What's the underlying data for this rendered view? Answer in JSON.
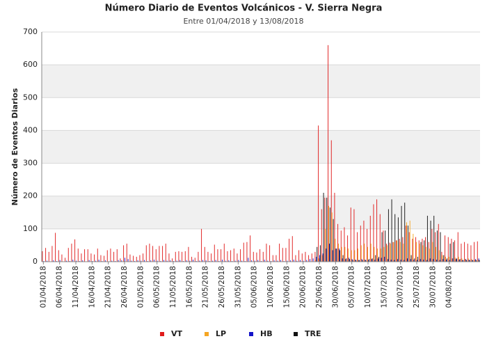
{
  "chart_data": {
    "type": "bar",
    "title": "Número Diario de Eventos Volcánicos -  V. Sierra Negra",
    "subtitle": "Entre 01/04/2018 y 13/08/2018",
    "y_label": "Número de Eventos Diarios",
    "grid": true,
    "legend": "bottom",
    "ylim": [
      0,
      700
    ],
    "yticks": [
      0,
      100,
      200,
      300,
      400,
      500,
      600,
      700
    ],
    "categories": [
      "01/04/2018",
      null,
      null,
      null,
      null,
      "06/04/2018",
      null,
      null,
      null,
      null,
      "11/04/2018",
      null,
      null,
      null,
      null,
      "16/04/2018",
      null,
      null,
      null,
      null,
      "21/04/2018",
      null,
      null,
      null,
      null,
      "26/04/2018",
      null,
      null,
      null,
      null,
      "01/05/2018",
      null,
      null,
      null,
      null,
      "06/05/2018",
      null,
      null,
      null,
      null,
      "11/05/2018",
      null,
      null,
      null,
      null,
      "16/05/2018",
      null,
      null,
      null,
      null,
      "21/05/2018",
      null,
      null,
      null,
      null,
      "26/05/2018",
      null,
      null,
      null,
      null,
      "31/05/2018",
      null,
      null,
      null,
      null,
      "05/06/2018",
      null,
      null,
      null,
      null,
      "10/06/2018",
      null,
      null,
      null,
      null,
      "15/06/2018",
      null,
      null,
      null,
      null,
      "20/06/2018",
      null,
      null,
      null,
      null,
      "25/06/2018",
      null,
      null,
      null,
      null,
      "30/06/2018",
      null,
      null,
      null,
      null,
      "05/07/2018",
      null,
      null,
      null,
      null,
      "10/07/2018",
      null,
      null,
      null,
      null,
      "15/07/2018",
      null,
      null,
      null,
      null,
      "20/07/2018",
      null,
      null,
      null,
      null,
      "25/07/2018",
      null,
      null,
      null,
      null,
      "30/07/2018",
      null,
      null,
      null,
      null,
      "04/08/2018",
      null,
      null,
      null,
      null,
      null,
      null,
      null,
      null,
      null
    ],
    "series": [
      {
        "name": "VT",
        "color": "#e01b1b",
        "values": [
          32,
          42,
          30,
          48,
          88,
          35,
          22,
          12,
          42,
          55,
          68,
          40,
          25,
          38,
          38,
          25,
          22,
          40,
          20,
          18,
          35,
          40,
          30,
          38,
          10,
          50,
          55,
          22,
          18,
          15,
          20,
          25,
          50,
          55,
          48,
          38,
          48,
          48,
          55,
          25,
          10,
          30,
          32,
          30,
          32,
          45,
          15,
          12,
          30,
          100,
          45,
          30,
          25,
          52,
          38,
          38,
          55,
          32,
          35,
          40,
          25,
          38,
          58,
          60,
          80,
          30,
          28,
          38,
          30,
          55,
          50,
          20,
          20,
          55,
          42,
          42,
          70,
          78,
          20,
          35,
          25,
          30,
          20,
          25,
          30,
          415,
          160,
          195,
          660,
          370,
          210,
          115,
          95,
          105,
          80,
          165,
          160,
          90,
          110,
          125,
          100,
          140,
          175,
          190,
          145,
          95,
          55,
          58,
          60,
          65,
          70,
          75,
          110,
          90,
          70,
          75,
          65,
          70,
          75,
          60,
          100,
          90,
          115,
          30,
          80,
          75,
          70,
          65,
          90,
          55,
          60,
          55,
          50,
          60,
          62
        ]
      },
      {
        "name": "LP",
        "color": "#f5a623",
        "values": [
          0,
          0,
          0,
          1,
          0,
          0,
          0,
          0,
          0,
          0,
          0,
          0,
          0,
          0,
          0,
          0,
          0,
          0,
          0,
          0,
          0,
          0,
          0,
          0,
          0,
          2,
          0,
          0,
          0,
          0,
          0,
          0,
          0,
          0,
          0,
          0,
          0,
          0,
          0,
          0,
          0,
          0,
          0,
          0,
          0,
          0,
          0,
          0,
          0,
          0,
          0,
          0,
          0,
          0,
          0,
          0,
          0,
          0,
          0,
          0,
          0,
          0,
          0,
          0,
          0,
          0,
          0,
          0,
          0,
          0,
          0,
          0,
          0,
          0,
          0,
          0,
          0,
          0,
          0,
          0,
          0,
          0,
          0,
          0,
          5,
          10,
          20,
          100,
          170,
          150,
          70,
          55,
          45,
          45,
          40,
          35,
          35,
          40,
          50,
          55,
          45,
          55,
          45,
          40,
          40,
          45,
          50,
          55,
          60,
          65,
          60,
          55,
          120,
          125,
          85,
          60,
          55,
          50,
          45,
          40,
          60,
          45,
          35,
          20,
          15,
          15,
          10,
          12,
          15,
          10,
          8,
          10,
          8,
          5,
          6
        ]
      },
      {
        "name": "HB",
        "color": "#1414c8",
        "values": [
          2,
          3,
          1,
          4,
          2,
          5,
          1,
          3,
          2,
          6,
          3,
          2,
          4,
          1,
          5,
          2,
          3,
          6,
          2,
          4,
          1,
          3,
          2,
          5,
          4,
          12,
          8,
          3,
          2,
          4,
          3,
          5,
          2,
          4,
          6,
          3,
          2,
          5,
          3,
          4,
          2,
          3,
          5,
          2,
          4,
          3,
          6,
          2,
          3,
          5,
          4,
          2,
          3,
          5,
          2,
          6,
          3,
          4,
          2,
          3,
          5,
          3,
          2,
          12,
          4,
          3,
          5,
          2,
          6,
          3,
          2,
          4,
          3,
          5,
          2,
          3,
          4,
          6,
          3,
          5,
          3,
          5,
          8,
          10,
          15,
          20,
          25,
          40,
          55,
          35,
          40,
          40,
          10,
          8,
          12,
          8,
          6,
          5,
          8,
          6,
          5,
          8,
          6,
          10,
          12,
          15,
          8,
          6,
          5,
          8,
          6,
          5,
          10,
          8,
          6,
          5,
          8,
          6,
          5,
          10,
          8,
          6,
          5,
          8,
          6,
          5,
          10,
          8,
          6,
          5,
          8,
          6,
          5,
          8,
          10
        ]
      },
      {
        "name": "TRE",
        "color": "#111111",
        "values": [
          0,
          0,
          0,
          0,
          0,
          0,
          0,
          0,
          0,
          0,
          0,
          0,
          0,
          0,
          0,
          0,
          0,
          0,
          0,
          0,
          0,
          0,
          0,
          0,
          0,
          0,
          0,
          0,
          0,
          0,
          0,
          0,
          0,
          0,
          0,
          0,
          0,
          0,
          0,
          0,
          0,
          0,
          0,
          0,
          0,
          0,
          0,
          0,
          0,
          0,
          0,
          0,
          0,
          0,
          0,
          0,
          0,
          0,
          0,
          0,
          0,
          0,
          0,
          0,
          0,
          0,
          0,
          0,
          0,
          0,
          0,
          0,
          0,
          0,
          0,
          0,
          0,
          0,
          0,
          0,
          0,
          0,
          0,
          0,
          45,
          50,
          210,
          195,
          165,
          130,
          40,
          35,
          20,
          10,
          8,
          5,
          5,
          5,
          5,
          5,
          8,
          10,
          20,
          15,
          90,
          95,
          160,
          190,
          145,
          135,
          170,
          180,
          110,
          20,
          10,
          15,
          60,
          65,
          140,
          125,
          140,
          95,
          90,
          20,
          10,
          55,
          60,
          10,
          8,
          5,
          5,
          5,
          5,
          5,
          5
        ]
      }
    ]
  }
}
